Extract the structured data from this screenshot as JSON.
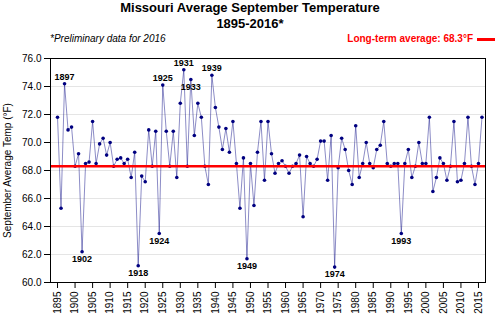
{
  "chart_data": {
    "type": "line",
    "title": "Missouri Average September Temperature",
    "subtitle": "1895-2016*",
    "note": "*Preliminary data for 2016",
    "y_label": "September Average Temp (°F)",
    "color": "#000080",
    "x": [
      1895,
      1896,
      1897,
      1898,
      1899,
      1900,
      1901,
      1902,
      1903,
      1904,
      1905,
      1906,
      1907,
      1908,
      1909,
      1910,
      1911,
      1912,
      1913,
      1914,
      1915,
      1916,
      1917,
      1918,
      1919,
      1920,
      1921,
      1922,
      1923,
      1924,
      1925,
      1926,
      1927,
      1928,
      1929,
      1930,
      1931,
      1932,
      1933,
      1934,
      1935,
      1936,
      1937,
      1938,
      1939,
      1940,
      1941,
      1942,
      1943,
      1944,
      1945,
      1946,
      1947,
      1948,
      1949,
      1950,
      1951,
      1952,
      1953,
      1954,
      1955,
      1956,
      1957,
      1958,
      1959,
      1960,
      1961,
      1962,
      1963,
      1964,
      1965,
      1966,
      1967,
      1968,
      1969,
      1970,
      1971,
      1972,
      1973,
      1974,
      1975,
      1976,
      1977,
      1978,
      1979,
      1980,
      1981,
      1982,
      1983,
      1984,
      1985,
      1986,
      1987,
      1988,
      1989,
      1990,
      1991,
      1992,
      1993,
      1994,
      1995,
      1996,
      1997,
      1998,
      1999,
      2000,
      2001,
      2002,
      2003,
      2004,
      2005,
      2006,
      2007,
      2008,
      2009,
      2010,
      2011,
      2012,
      2013,
      2014,
      2015,
      2016
    ],
    "values": [
      71.8,
      65.3,
      74.2,
      70.9,
      71.1,
      68.3,
      69.2,
      62.2,
      68.5,
      68.6,
      71.5,
      68.5,
      69.9,
      70.3,
      69.1,
      70.0,
      68.3,
      68.8,
      68.9,
      68.5,
      68.8,
      67.5,
      69.3,
      61.2,
      67.6,
      67.2,
      70.9,
      68.3,
      70.8,
      63.5,
      74.1,
      70.8,
      68.3,
      70.8,
      67.5,
      72.8,
      75.2,
      68.3,
      74.5,
      70.5,
      72.8,
      71.8,
      68.3,
      67.0,
      74.8,
      72.5,
      71.1,
      69.5,
      71.0,
      69.3,
      71.5,
      68.5,
      65.3,
      68.9,
      61.7,
      68.5,
      65.5,
      69.3,
      71.5,
      67.3,
      71.5,
      69.2,
      67.8,
      68.5,
      68.7,
      68.3,
      67.8,
      68.3,
      68.5,
      69.1,
      64.7,
      69.0,
      68.5,
      68.3,
      68.8,
      70.1,
      70.1,
      67.3,
      70.5,
      61.1,
      68.2,
      70.3,
      69.5,
      68.0,
      67.0,
      71.2,
      67.5,
      68.5,
      70.0,
      68.5,
      68.2,
      69.5,
      69.8,
      71.5,
      68.5,
      68.3,
      68.5,
      68.5,
      63.5,
      68.5,
      69.5,
      67.5,
      68.3,
      70.0,
      68.5,
      68.5,
      71.8,
      66.5,
      67.5,
      68.9,
      68.5,
      67.3,
      68.3,
      71.5,
      67.2,
      67.3,
      68.5,
      71.8,
      68.3,
      67.0,
      68.5,
      71.8
    ],
    "xlim": [
      1893,
      2017
    ],
    "xticks": [
      1895,
      1900,
      1905,
      1910,
      1915,
      1920,
      1925,
      1930,
      1935,
      1940,
      1945,
      1950,
      1955,
      1960,
      1965,
      1970,
      1975,
      1980,
      1985,
      1990,
      1995,
      2000,
      2005,
      2010,
      2015
    ],
    "ylim": [
      60.0,
      76.0
    ],
    "yticks": [
      {
        "value": 60,
        "label": "60.0"
      },
      {
        "value": 62,
        "label": "62.0"
      },
      {
        "value": 64,
        "label": "64.0"
      },
      {
        "value": 66,
        "label": "66.0"
      },
      {
        "value": 68,
        "label": "68.0"
      },
      {
        "value": 70,
        "label": "70.0"
      },
      {
        "value": 72,
        "label": "72.0"
      },
      {
        "value": 74,
        "label": "74.0"
      },
      {
        "value": 76,
        "label": "76.0"
      }
    ],
    "grid": true,
    "reference_line": {
      "value": 68.3,
      "label": "Long-term average: 68.3°F",
      "color": "#FF0000"
    },
    "annotations": [
      {
        "text": "1897",
        "x": 1897,
        "y": 74.2
      },
      {
        "text": "1902",
        "x": 1902,
        "y": 62.2
      },
      {
        "text": "1918",
        "x": 1918,
        "y": 61.2
      },
      {
        "text": "1924",
        "x": 1924,
        "y": 63.5
      },
      {
        "text": "1925",
        "x": 1925,
        "y": 74.1
      },
      {
        "text": "1931",
        "x": 1931,
        "y": 75.2
      },
      {
        "text": "1933",
        "x": 1933,
        "y": 74.5
      },
      {
        "text": "1939",
        "x": 1939,
        "y": 74.8
      },
      {
        "text": "1949",
        "x": 1949,
        "y": 61.7
      },
      {
        "text": "1974",
        "x": 1974,
        "y": 61.1
      },
      {
        "text": "1993",
        "x": 1993,
        "y": 63.5
      }
    ]
  }
}
